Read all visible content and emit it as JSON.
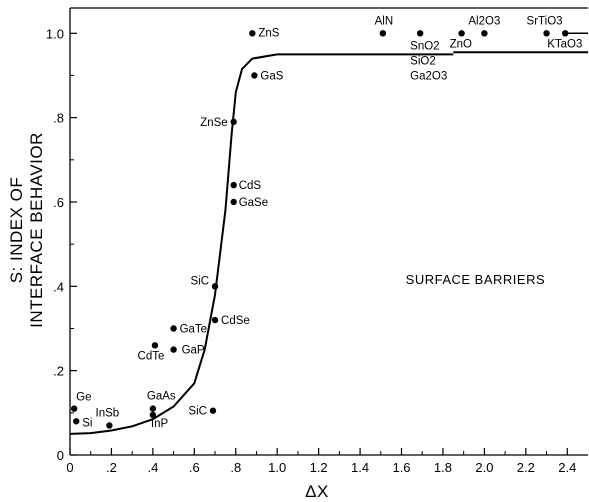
{
  "chart_data": {
    "type": "scatter",
    "title": "",
    "xlabel": "ΔX",
    "ylabel_lines": [
      "S: INDEX OF",
      "INTERFACE BEHAVIOR"
    ],
    "xlim": [
      0,
      2.5
    ],
    "ylim": [
      0,
      1.06
    ],
    "x_ticks": [
      0,
      0.2,
      0.4,
      0.6,
      0.8,
      1.0,
      1.2,
      1.4,
      1.6,
      1.8,
      2.0,
      2.2,
      2.4
    ],
    "x_tick_labels": [
      "0",
      ".2",
      ".4",
      ".6",
      ".8",
      "1.0",
      "1.2",
      "1.4",
      "1.6",
      "1.8",
      "2.0",
      "2.2",
      "2.4"
    ],
    "y_ticks": [
      0,
      0.2,
      0.4,
      0.6,
      0.8,
      1.0
    ],
    "y_tick_labels": [
      "0",
      ".2",
      ".4",
      ".6",
      ".8",
      "1.0"
    ],
    "grid": false,
    "annotation": "SURFACE BARRIERS",
    "points": [
      {
        "label": "Ge",
        "x": 0.02,
        "y": 0.11
      },
      {
        "label": "Si",
        "x": 0.03,
        "y": 0.08
      },
      {
        "label": "InSb",
        "x": 0.19,
        "y": 0.07
      },
      {
        "label": "GaAs",
        "x": 0.4,
        "y": 0.11
      },
      {
        "label": "InP",
        "x": 0.4,
        "y": 0.095
      },
      {
        "label": "SiC",
        "x": 0.69,
        "y": 0.105
      },
      {
        "label": "CdTe",
        "x": 0.41,
        "y": 0.26
      },
      {
        "label": "GaP",
        "x": 0.5,
        "y": 0.25
      },
      {
        "label": "GaTe",
        "x": 0.5,
        "y": 0.3
      },
      {
        "label": "CdSe",
        "x": 0.7,
        "y": 0.32
      },
      {
        "label": "SiC",
        "x": 0.7,
        "y": 0.4
      },
      {
        "label": "GaSe",
        "x": 0.79,
        "y": 0.6
      },
      {
        "label": "CdS",
        "x": 0.79,
        "y": 0.64
      },
      {
        "label": "ZnSe",
        "x": 0.79,
        "y": 0.79
      },
      {
        "label": "GaS",
        "x": 0.89,
        "y": 0.9
      },
      {
        "label": "ZnS",
        "x": 0.88,
        "y": 1.0
      },
      {
        "label": "AlN",
        "x": 1.51,
        "y": 1.0
      },
      {
        "label": "SnO2",
        "x": 1.69,
        "y": 1.0
      },
      {
        "label": "ZnO",
        "x": 1.89,
        "y": 1.0
      },
      {
        "label": "Al2O3",
        "x": 2.0,
        "y": 1.0
      },
      {
        "label": "SrTiO3",
        "x": 2.3,
        "y": 1.0
      },
      {
        "label": "KTaO3",
        "x": 2.39,
        "y": 1.0
      }
    ],
    "extra_labels": [
      "SiO2",
      "Ga2O3"
    ],
    "curve": [
      [
        0,
        0.05
      ],
      [
        0.1,
        0.052
      ],
      [
        0.2,
        0.058
      ],
      [
        0.3,
        0.068
      ],
      [
        0.4,
        0.085
      ],
      [
        0.5,
        0.115
      ],
      [
        0.6,
        0.17
      ],
      [
        0.65,
        0.25
      ],
      [
        0.7,
        0.38
      ],
      [
        0.75,
        0.58
      ],
      [
        0.78,
        0.76
      ],
      [
        0.8,
        0.86
      ],
      [
        0.83,
        0.915
      ],
      [
        0.88,
        0.94
      ],
      [
        1.0,
        0.95
      ],
      [
        1.4,
        0.95
      ],
      [
        1.85,
        0.95
      ]
    ],
    "curve_right_segment": [
      [
        1.85,
        0.955
      ],
      [
        2.5,
        0.955
      ]
    ],
    "curve_top_segment": [
      [
        2.4,
        1.0
      ],
      [
        2.5,
        1.0
      ]
    ]
  }
}
